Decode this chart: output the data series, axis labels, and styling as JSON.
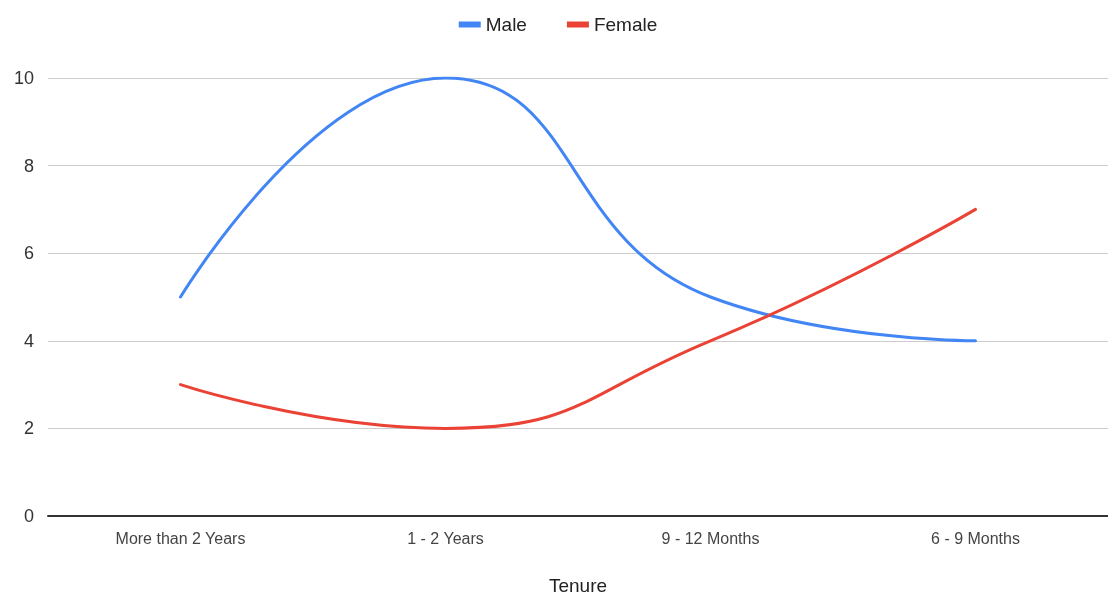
{
  "chart_data": {
    "type": "line",
    "xlabel": "Tenure",
    "categories": [
      "More than 2 Years",
      "1 - 2 Years",
      "9 - 12 Months",
      "6 - 9 Months"
    ],
    "series": [
      {
        "name": "Male",
        "color": "#4285f4",
        "values": [
          5,
          10,
          5,
          4
        ]
      },
      {
        "name": "Female",
        "color": "#ea4335",
        "values": [
          3,
          2,
          4,
          7
        ]
      }
    ],
    "ylim": [
      0,
      10
    ],
    "yticks": [
      0,
      2,
      4,
      6,
      8,
      10
    ],
    "grid": "y",
    "legend": "top",
    "marker": "none",
    "line_style": "solid"
  }
}
